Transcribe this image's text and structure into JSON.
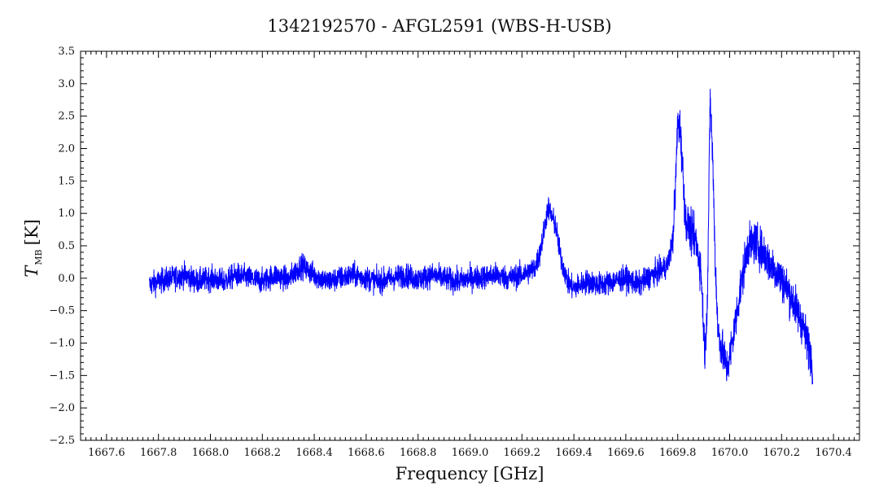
{
  "chart_data": {
    "type": "line",
    "title": "1342192570 - AFGL2591 (WBS-H-USB)",
    "xlabel": "Frequency [GHz]",
    "ylabel": "T",
    "ylabel_subscript": "MB",
    "ylabel_unit": "[K]",
    "xlim": [
      1667.5,
      1670.5
    ],
    "ylim": [
      -2.5,
      3.5
    ],
    "x_ticks": [
      1667.6,
      1667.8,
      1668.0,
      1668.2,
      1668.4,
      1668.6,
      1668.8,
      1669.0,
      1669.2,
      1669.4,
      1669.6,
      1669.8,
      1670.0,
      1670.2,
      1670.4
    ],
    "x_tick_labels": [
      "1667.6",
      "1667.8",
      "1668.0",
      "1668.2",
      "1668.4",
      "1668.6",
      "1668.8",
      "1669.0",
      "1669.2",
      "1669.4",
      "1669.6",
      "1669.8",
      "1670.0",
      "1670.2",
      "1670.4"
    ],
    "y_ticks": [
      -2.5,
      -2.0,
      -1.5,
      -1.0,
      -0.5,
      0.0,
      0.5,
      1.0,
      1.5,
      2.0,
      2.5,
      3.0,
      3.5
    ],
    "y_tick_labels": [
      "−2.5",
      "−2.0",
      "−1.5",
      "−1.0",
      "−0.5",
      "0.0",
      "0.5",
      "1.0",
      "1.5",
      "2.0",
      "2.5",
      "3.0",
      "3.5"
    ],
    "grid": false,
    "legend": "none",
    "series": [
      {
        "color": "#0000ff",
        "x": [
          1667.765,
          1667.8,
          1667.85,
          1667.9,
          1667.95,
          1668.0,
          1668.05,
          1668.1,
          1668.15,
          1668.2,
          1668.25,
          1668.3,
          1668.35,
          1668.4,
          1668.45,
          1668.5,
          1668.55,
          1668.6,
          1668.65,
          1668.7,
          1668.75,
          1668.8,
          1668.85,
          1668.9,
          1668.95,
          1669.0,
          1669.05,
          1669.1,
          1669.15,
          1669.2,
          1669.25,
          1669.27,
          1669.29,
          1669.3,
          1669.31,
          1669.33,
          1669.35,
          1669.38,
          1669.4,
          1669.45,
          1669.5,
          1669.55,
          1669.6,
          1669.65,
          1669.7,
          1669.73,
          1669.76,
          1669.78,
          1669.79,
          1669.8,
          1669.81,
          1669.82,
          1669.83,
          1669.85,
          1669.87,
          1669.89,
          1669.905,
          1669.915,
          1669.925,
          1669.935,
          1669.945,
          1669.955,
          1669.97,
          1669.99,
          1670.01,
          1670.04,
          1670.07,
          1670.1,
          1670.13,
          1670.16,
          1670.19,
          1670.22,
          1670.25,
          1670.28,
          1670.3,
          1670.32
        ],
        "y": [
          -0.1,
          -0.05,
          0.0,
          0.05,
          -0.05,
          0.0,
          -0.05,
          0.05,
          0.0,
          -0.05,
          0.05,
          -0.02,
          0.2,
          0.05,
          -0.05,
          0.0,
          0.05,
          0.0,
          -0.05,
          0.0,
          0.05,
          -0.02,
          0.05,
          0.0,
          -0.05,
          0.0,
          0.02,
          0.05,
          0.0,
          0.05,
          0.15,
          0.4,
          0.85,
          1.1,
          1.0,
          0.8,
          0.3,
          -0.1,
          -0.15,
          -0.05,
          -0.1,
          -0.05,
          0.0,
          -0.1,
          0.05,
          0.1,
          0.2,
          0.55,
          1.3,
          2.4,
          2.3,
          1.6,
          0.9,
          0.7,
          0.6,
          0.1,
          -1.2,
          -0.2,
          2.8,
          1.8,
          0.2,
          -0.8,
          -1.1,
          -1.4,
          -1.0,
          -0.2,
          0.5,
          0.55,
          0.4,
          0.2,
          0.05,
          -0.15,
          -0.4,
          -0.7,
          -1.0,
          -1.3
        ]
      }
    ]
  }
}
